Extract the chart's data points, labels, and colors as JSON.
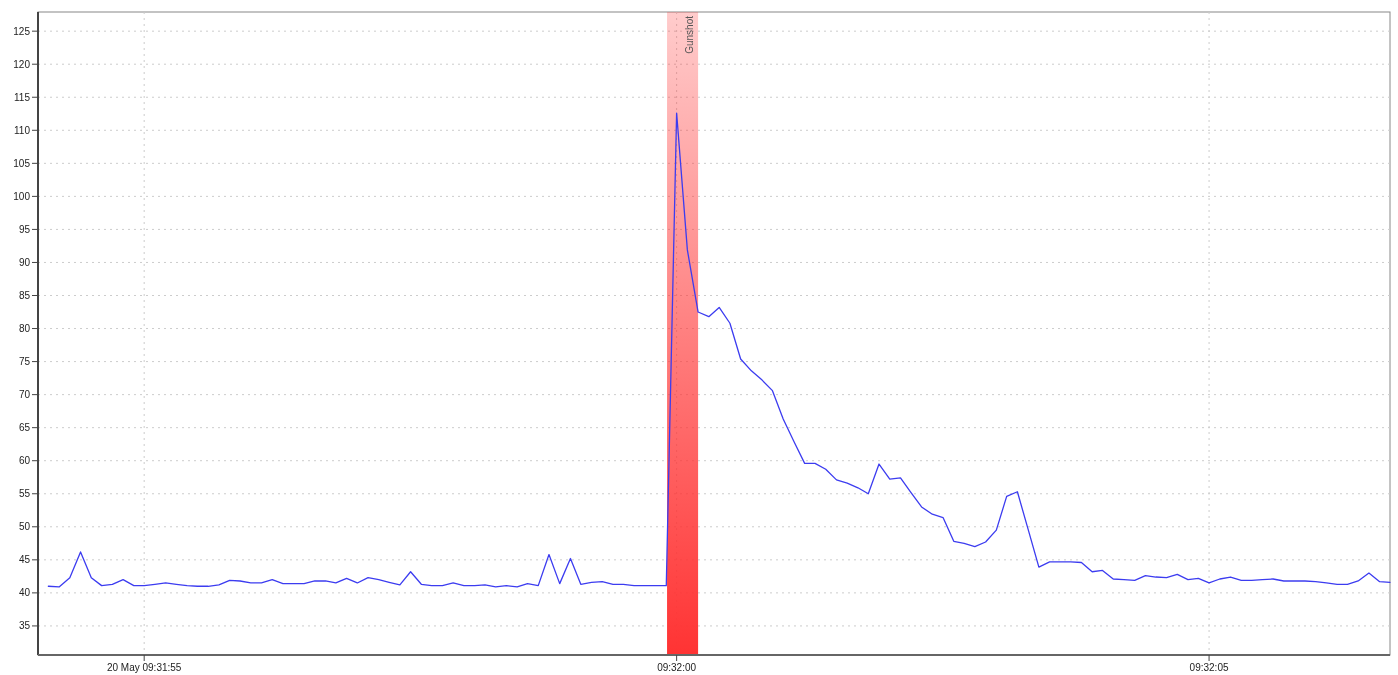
{
  "chart_data": {
    "type": "line",
    "x": [
      9.531694,
      9.531722,
      9.53175,
      9.531778,
      9.531806,
      9.531833,
      9.531861,
      9.531889,
      9.531917,
      9.531944,
      9.531972,
      9.532,
      9.532028,
      9.532056,
      9.532083,
      9.532111,
      9.532139,
      9.532167,
      9.532194,
      9.532222,
      9.53225,
      9.532278,
      9.532306,
      9.532333,
      9.532361,
      9.532389,
      9.532417,
      9.532444,
      9.532472,
      9.5325,
      9.532528,
      9.532556,
      9.532583,
      9.532611,
      9.532639,
      9.532667,
      9.532694,
      9.532722,
      9.53275,
      9.532778,
      9.532806,
      9.532833,
      9.532861,
      9.532889,
      9.532917,
      9.532944,
      9.532972,
      9.533,
      9.533028,
      9.533056,
      9.533083,
      9.533111,
      9.533139,
      9.533167,
      9.533194,
      9.533222,
      9.53325,
      9.533278,
      9.533306,
      9.533333,
      9.533361,
      9.533389,
      9.533417,
      9.533444,
      9.533472,
      9.5335,
      9.533528,
      9.533556,
      9.533583,
      9.533611,
      9.533639,
      9.533667,
      9.533694,
      9.533722,
      9.53375,
      9.533778,
      9.533806,
      9.533833,
      9.533861,
      9.533889,
      9.533917,
      9.533944,
      9.533972,
      9.534,
      9.534028,
      9.534056,
      9.534083,
      9.534111,
      9.534139,
      9.534167,
      9.534194,
      9.534222,
      9.53425,
      9.534278,
      9.534306,
      9.534333,
      9.534361,
      9.534389,
      9.534417,
      9.534444,
      9.534472,
      9.5345,
      9.534528,
      9.534556,
      9.534583,
      9.534611,
      9.534639,
      9.534667,
      9.534694,
      9.534722,
      9.53475,
      9.534778,
      9.534806,
      9.534833,
      9.534861,
      9.534889,
      9.534917,
      9.534944,
      9.534972,
      9.535,
      9.535028,
      9.535056,
      9.535083,
      9.535111,
      9.535139,
      9.535167,
      9.535194
    ],
    "series": [
      {
        "color": "#3c3cf0",
        "values": [
          41.0,
          40.9,
          42.3,
          46.2,
          42.3,
          41.1,
          41.3,
          42.0,
          41.1,
          41.1,
          41.3,
          41.5,
          41.3,
          41.1,
          41.0,
          41.0,
          41.2,
          41.9,
          41.8,
          41.5,
          41.5,
          42.0,
          41.4,
          41.4,
          41.4,
          41.8,
          41.8,
          41.5,
          42.2,
          41.5,
          42.3,
          42.0,
          41.6,
          41.2,
          43.2,
          41.3,
          41.1,
          41.1,
          41.5,
          41.1,
          41.1,
          41.2,
          40.9,
          41.1,
          40.9,
          41.4,
          41.1,
          45.8,
          41.4,
          45.2,
          41.3,
          41.6,
          41.7,
          41.3,
          41.3,
          41.1,
          41.1,
          41.1,
          41.1,
          112.6,
          91.9,
          82.5,
          81.8,
          83.2,
          80.8,
          75.4,
          73.6,
          72.2,
          70.6,
          66.3,
          62.9,
          59.6,
          59.6,
          58.7,
          57.1,
          56.6,
          55.9,
          55.0,
          59.5,
          57.2,
          57.4,
          55.2,
          53.0,
          51.9,
          51.4,
          47.8,
          47.5,
          47.0,
          47.7,
          49.5,
          54.6,
          55.3,
          49.6,
          43.9,
          44.7,
          44.7,
          44.7,
          44.6,
          43.2,
          43.4,
          42.1,
          42.0,
          41.9,
          42.6,
          42.4,
          42.3,
          42.8,
          42.0,
          42.2,
          41.5,
          42.1,
          42.4,
          41.9,
          41.9,
          42.0,
          42.1,
          41.8,
          41.8,
          41.8,
          41.7,
          41.5,
          41.3,
          41.3,
          41.8,
          43.0,
          41.7,
          41.6
        ]
      }
    ],
    "xlim": [
      9.531667,
      9.535194
    ],
    "xticks": [
      {
        "value": 9.531944,
        "label": "20 May 09:31:55"
      },
      {
        "value": 9.533333,
        "label": "09:32:00"
      },
      {
        "value": 9.534722,
        "label": "09:32:05"
      }
    ],
    "ylim": [
      30.6,
      127.9
    ],
    "yticks": [
      35,
      40,
      45,
      50,
      55,
      60,
      65,
      70,
      75,
      80,
      85,
      90,
      95,
      100,
      105,
      110,
      115,
      120,
      125
    ],
    "grid": true,
    "bands": [
      {
        "axis": "x",
        "from": 9.533308,
        "to": 9.533389,
        "label": "Gunshot",
        "color": "#ff3333"
      }
    ]
  }
}
